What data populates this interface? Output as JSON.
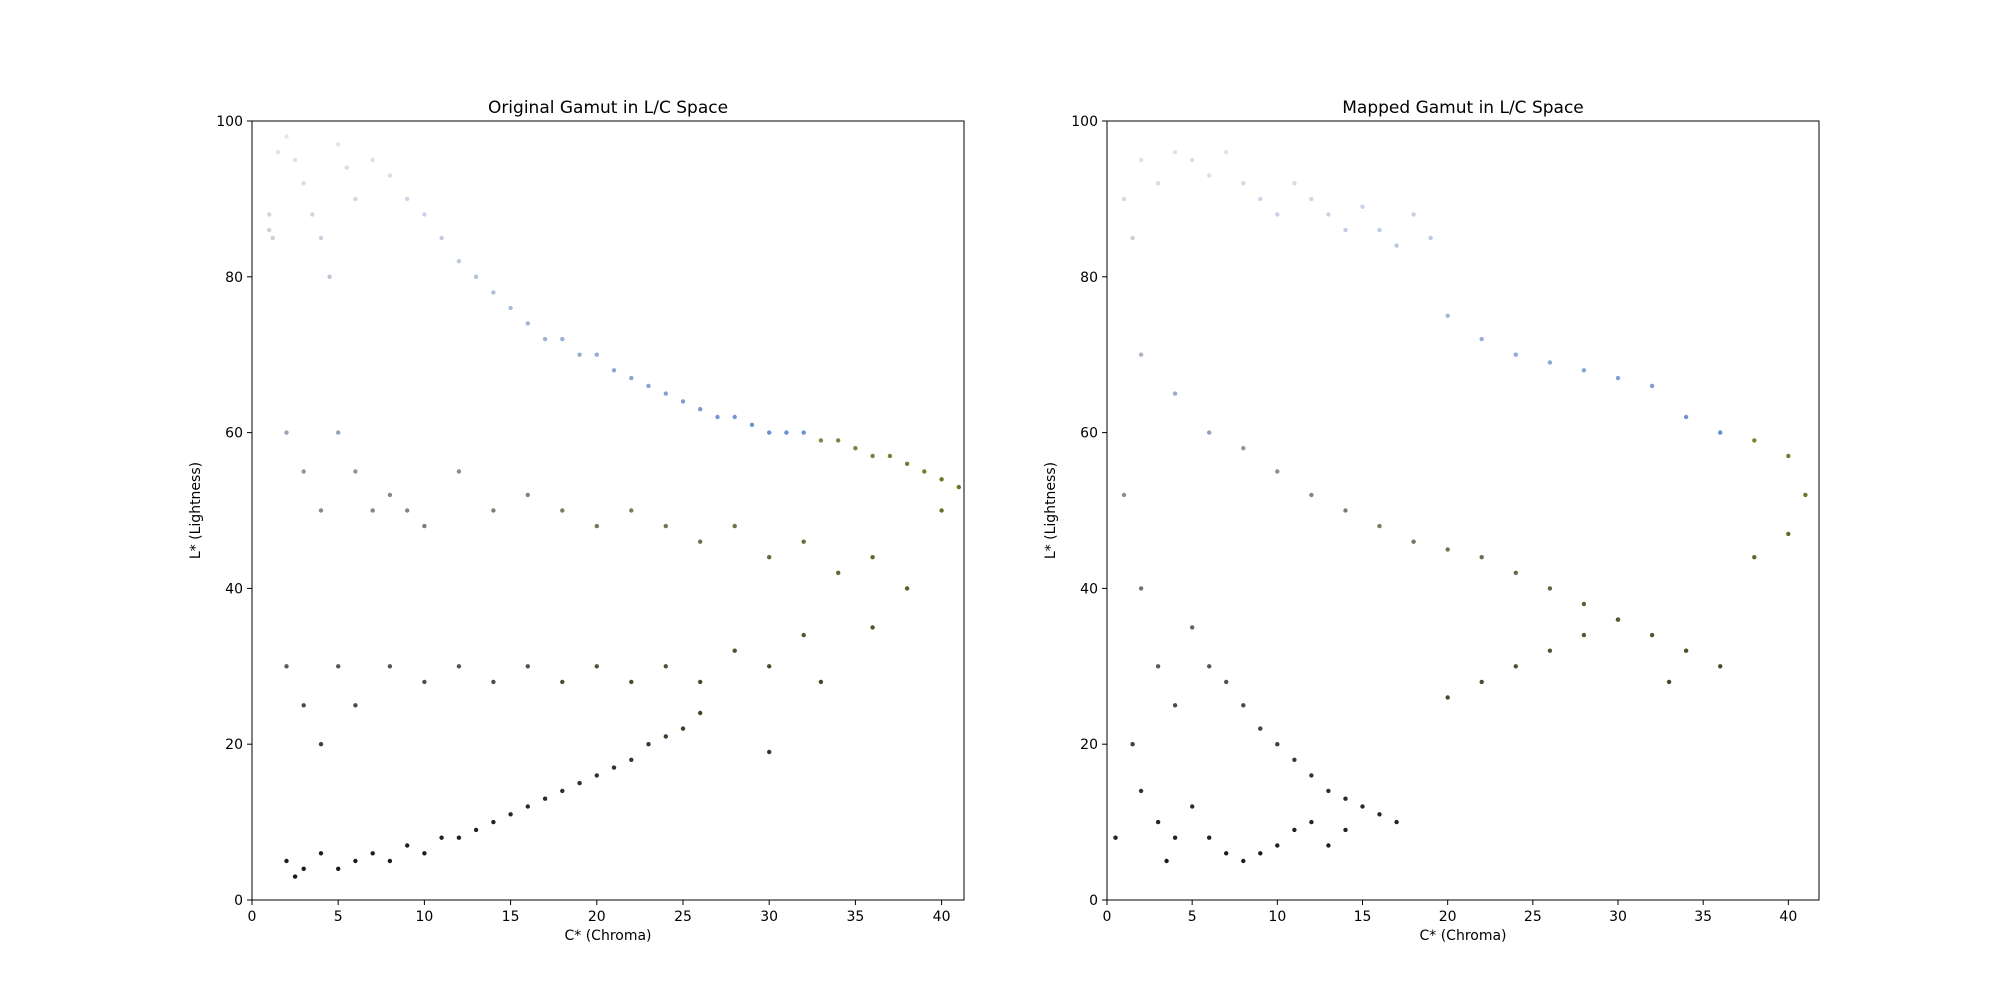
{
  "chart_data": [
    {
      "type": "scatter",
      "title": "Original Gamut in L/C Space",
      "xlabel": "C* (Chroma)",
      "ylabel": "L* (Lightness)",
      "xlim": [
        0,
        41.3
      ],
      "ylim": [
        0,
        100
      ],
      "xticks": [
        0,
        5,
        10,
        15,
        20,
        25,
        30,
        35,
        40
      ],
      "yticks": [
        0,
        20,
        40,
        60,
        80,
        100
      ],
      "grid": false,
      "colors": {
        "light": "#f4f7fd",
        "gray": "#9aa6b3",
        "blue": "#5b8ad6",
        "olive": "#6e8a2e",
        "dark": "#0d1208"
      },
      "series": [
        {
          "values": [
            [
              1.0,
              86
            ],
            [
              1.0,
              88
            ],
            [
              1.2,
              85
            ],
            [
              1.5,
              96
            ],
            [
              2.0,
              98
            ],
            [
              2.5,
              95
            ],
            [
              3.0,
              92
            ],
            [
              3.5,
              88
            ],
            [
              4.0,
              85
            ],
            [
              4.5,
              80
            ],
            [
              5.0,
              97
            ],
            [
              5.5,
              94
            ],
            [
              6.0,
              90
            ],
            [
              7.0,
              95
            ],
            [
              8.0,
              93
            ],
            [
              9.0,
              90
            ],
            [
              10.0,
              88
            ],
            [
              11.0,
              85
            ],
            [
              12.0,
              82
            ],
            [
              13.0,
              80
            ],
            [
              14.0,
              78
            ],
            [
              15.0,
              76
            ],
            [
              16.0,
              74
            ],
            [
              17.0,
              72
            ],
            [
              18.0,
              72
            ],
            [
              19.0,
              70
            ],
            [
              20.0,
              70
            ],
            [
              21.0,
              68
            ],
            [
              22.0,
              67
            ],
            [
              23.0,
              66
            ],
            [
              24.0,
              65
            ],
            [
              25.0,
              64
            ],
            [
              26.0,
              63
            ],
            [
              27.0,
              62
            ],
            [
              28.0,
              62
            ],
            [
              29.0,
              61
            ],
            [
              30.0,
              60
            ],
            [
              31.0,
              60
            ],
            [
              32.0,
              60
            ],
            [
              33.0,
              59
            ],
            [
              34.0,
              59
            ],
            [
              35.0,
              58
            ],
            [
              36.0,
              57
            ],
            [
              37.0,
              57
            ],
            [
              38.0,
              56
            ],
            [
              39.0,
              55
            ],
            [
              40.0,
              54
            ],
            [
              41.0,
              53
            ],
            [
              2.0,
              60
            ],
            [
              3.0,
              55
            ],
            [
              4.0,
              50
            ],
            [
              5.0,
              60
            ],
            [
              6.0,
              55
            ],
            [
              7.0,
              50
            ],
            [
              8.0,
              52
            ],
            [
              9.0,
              50
            ],
            [
              10.0,
              48
            ],
            [
              12.0,
              55
            ],
            [
              14.0,
              50
            ],
            [
              16.0,
              52
            ],
            [
              18.0,
              50
            ],
            [
              20.0,
              48
            ],
            [
              22.0,
              50
            ],
            [
              24.0,
              48
            ],
            [
              26.0,
              46
            ],
            [
              28.0,
              48
            ],
            [
              30.0,
              44
            ],
            [
              32.0,
              46
            ],
            [
              34.0,
              42
            ],
            [
              36.0,
              44
            ],
            [
              38.0,
              40
            ],
            [
              40.0,
              50
            ],
            [
              2.0,
              30
            ],
            [
              3.0,
              25
            ],
            [
              4.0,
              20
            ],
            [
              5.0,
              30
            ],
            [
              6.0,
              25
            ],
            [
              8.0,
              30
            ],
            [
              10.0,
              28
            ],
            [
              12.0,
              30
            ],
            [
              14.0,
              28
            ],
            [
              16.0,
              30
            ],
            [
              18.0,
              28
            ],
            [
              20.0,
              30
            ],
            [
              22.0,
              28
            ],
            [
              24.0,
              30
            ],
            [
              26.0,
              28
            ],
            [
              28.0,
              32
            ],
            [
              30.0,
              30
            ],
            [
              32.0,
              34
            ],
            [
              2.0,
              5
            ],
            [
              2.5,
              3
            ],
            [
              3.0,
              4
            ],
            [
              4.0,
              6
            ],
            [
              5.0,
              4
            ],
            [
              6.0,
              5
            ],
            [
              7.0,
              6
            ],
            [
              8.0,
              5
            ],
            [
              9.0,
              7
            ],
            [
              10.0,
              6
            ],
            [
              11.0,
              8
            ],
            [
              12.0,
              8
            ],
            [
              13.0,
              9
            ],
            [
              14.0,
              10
            ],
            [
              15.0,
              11
            ],
            [
              16.0,
              12
            ],
            [
              17.0,
              13
            ],
            [
              18.0,
              14
            ],
            [
              19.0,
              15
            ],
            [
              20.0,
              16
            ],
            [
              21.0,
              17
            ],
            [
              22.0,
              18
            ],
            [
              23.0,
              20
            ],
            [
              24.0,
              21
            ],
            [
              25.0,
              22
            ],
            [
              26.0,
              24
            ],
            [
              30.0,
              19
            ],
            [
              33.0,
              28
            ],
            [
              36.0,
              35
            ]
          ]
        }
      ]
    },
    {
      "type": "scatter",
      "title": "Mapped Gamut in L/C Space",
      "xlabel": "C* (Chroma)",
      "ylabel": "L* (Lightness)",
      "xlim": [
        0,
        41.8
      ],
      "ylim": [
        0,
        100
      ],
      "xticks": [
        0,
        5,
        10,
        15,
        20,
        25,
        30,
        35,
        40
      ],
      "yticks": [
        0,
        20,
        40,
        60,
        80,
        100
      ],
      "grid": false,
      "colors": {
        "light": "#f4f7fd",
        "gray": "#9aa6b3",
        "blue": "#5b8ad6",
        "olive": "#6e8a2e",
        "dark": "#0d1208"
      },
      "series": [
        {
          "values": [
            [
              1.0,
              90
            ],
            [
              1.5,
              85
            ],
            [
              2.0,
              95
            ],
            [
              3.0,
              92
            ],
            [
              4.0,
              96
            ],
            [
              5.0,
              95
            ],
            [
              6.0,
              93
            ],
            [
              7.0,
              96
            ],
            [
              8.0,
              92
            ],
            [
              9.0,
              90
            ],
            [
              10.0,
              88
            ],
            [
              11.0,
              92
            ],
            [
              12.0,
              90
            ],
            [
              13.0,
              88
            ],
            [
              14.0,
              86
            ],
            [
              15.0,
              89
            ],
            [
              16.0,
              86
            ],
            [
              17.0,
              84
            ],
            [
              18.0,
              88
            ],
            [
              19.0,
              85
            ],
            [
              20.0,
              75
            ],
            [
              22.0,
              72
            ],
            [
              24.0,
              70
            ],
            [
              26.0,
              69
            ],
            [
              28.0,
              68
            ],
            [
              30.0,
              67
            ],
            [
              32.0,
              66
            ],
            [
              34.0,
              62
            ],
            [
              36.0,
              60
            ],
            [
              38.0,
              59
            ],
            [
              40.0,
              57
            ],
            [
              41.0,
              52
            ],
            [
              2.0,
              70
            ],
            [
              4.0,
              65
            ],
            [
              6.0,
              60
            ],
            [
              8.0,
              58
            ],
            [
              10.0,
              55
            ],
            [
              12.0,
              52
            ],
            [
              14.0,
              50
            ],
            [
              16.0,
              48
            ],
            [
              18.0,
              46
            ],
            [
              20.0,
              45
            ],
            [
              22.0,
              44
            ],
            [
              24.0,
              42
            ],
            [
              26.0,
              40
            ],
            [
              28.0,
              38
            ],
            [
              30.0,
              36
            ],
            [
              32.0,
              34
            ],
            [
              34.0,
              32
            ],
            [
              36.0,
              30
            ],
            [
              38.0,
              44
            ],
            [
              40.0,
              47
            ],
            [
              2.0,
              40
            ],
            [
              3.0,
              30
            ],
            [
              4.0,
              25
            ],
            [
              5.0,
              35
            ],
            [
              6.0,
              30
            ],
            [
              7.0,
              28
            ],
            [
              8.0,
              25
            ],
            [
              9.0,
              22
            ],
            [
              10.0,
              20
            ],
            [
              11.0,
              18
            ],
            [
              12.0,
              16
            ],
            [
              13.0,
              14
            ],
            [
              14.0,
              13
            ],
            [
              15.0,
              12
            ],
            [
              16.0,
              11
            ],
            [
              17.0,
              10
            ],
            [
              3.0,
              10
            ],
            [
              3.5,
              5
            ],
            [
              4.0,
              8
            ],
            [
              5.0,
              12
            ],
            [
              6.0,
              8
            ],
            [
              7.0,
              6
            ],
            [
              8.0,
              5
            ],
            [
              9.0,
              6
            ],
            [
              10.0,
              7
            ],
            [
              11.0,
              9
            ],
            [
              12.0,
              10
            ],
            [
              13.0,
              7
            ],
            [
              14.0,
              9
            ],
            [
              20.0,
              26
            ],
            [
              22.0,
              28
            ],
            [
              24.0,
              30
            ],
            [
              26.0,
              32
            ],
            [
              28.0,
              34
            ],
            [
              30.0,
              36
            ],
            [
              33.0,
              28
            ],
            [
              1.0,
              52
            ],
            [
              1.5,
              20
            ],
            [
              2.0,
              14
            ],
            [
              0.5,
              8
            ]
          ]
        }
      ]
    }
  ]
}
